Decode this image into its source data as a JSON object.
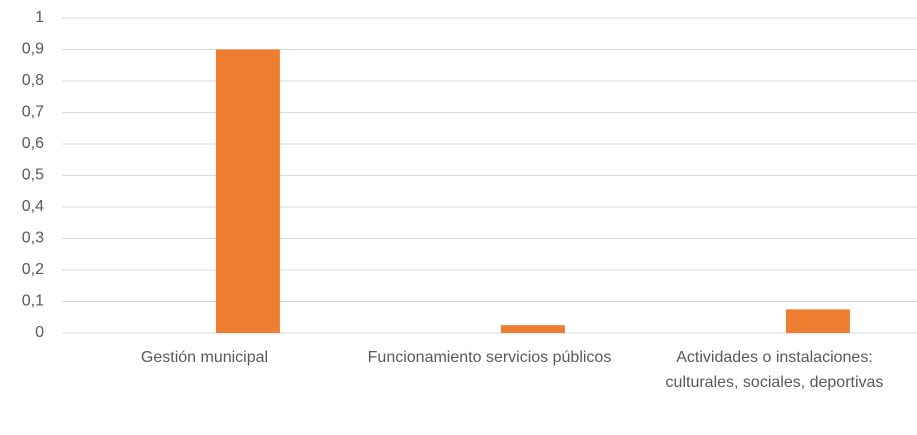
{
  "chart_data": {
    "type": "bar",
    "categories": [
      "Gestión municipal",
      "Funcionamiento servicios públicos",
      "Actividades o instalaciones: culturales, sociales, deportivas"
    ],
    "values": [
      0.9,
      0.025,
      0.075
    ],
    "color": "#ed7d31",
    "ylim": [
      0,
      1
    ],
    "yticks": [
      0,
      {
        "value": 0.1,
        "label": "0,1"
      },
      {
        "value": 0.2,
        "label": "0,2"
      },
      {
        "value": 0.3,
        "label": "0,3"
      },
      {
        "value": 0.4,
        "label": "0,4"
      },
      {
        "value": 0.5,
        "label": "0,5"
      },
      {
        "value": 0.6,
        "label": "0,6"
      },
      {
        "value": 0.7,
        "label": "0,7"
      },
      {
        "value": 0.8,
        "label": "0,8"
      },
      {
        "value": 0.9,
        "label": "0,9"
      },
      1
    ],
    "grid": true
  }
}
